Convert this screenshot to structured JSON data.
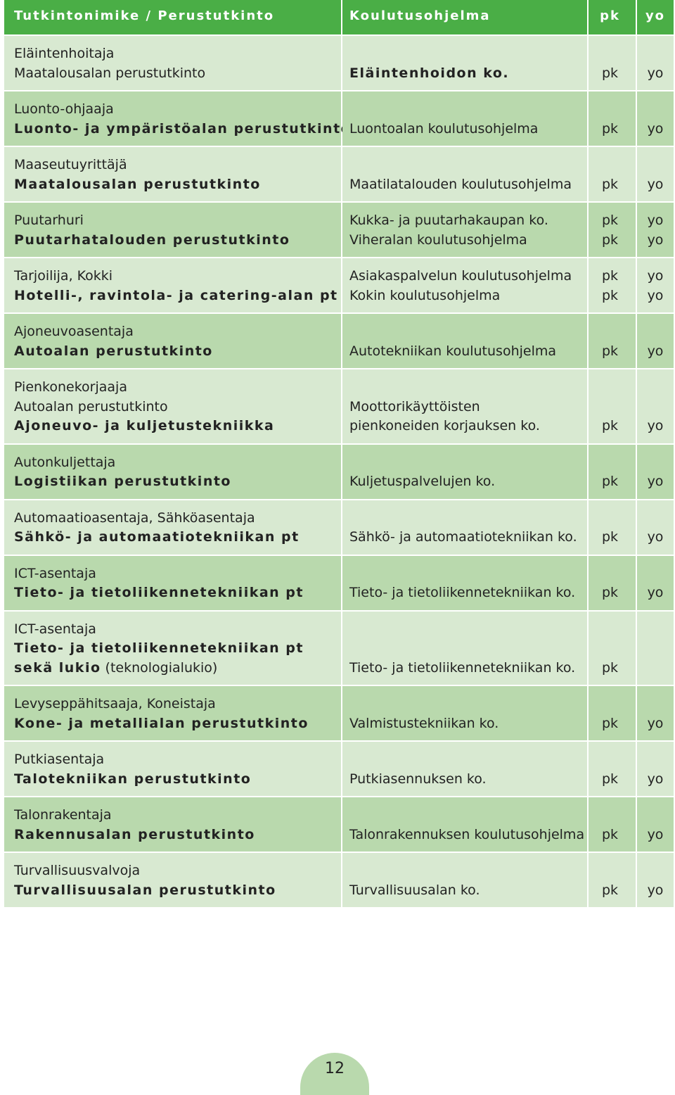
{
  "header": {
    "title_col": "Tutkintonimike /  Perustutkinto",
    "program_col": "Koulutusohjelma",
    "pk_col": "pk",
    "yo_col": "yo"
  },
  "rows": [
    {
      "titles": [
        "Eläintenhoitaja"
      ],
      "degree": [
        "Maatalousalan perustutkinto"
      ],
      "degree_bold": false,
      "programs": [
        "Eläintenhoidon ko."
      ],
      "program_bold": true,
      "pk": [
        "pk"
      ],
      "yo": [
        "yo"
      ]
    },
    {
      "titles": [
        "Luonto-ohjaaja"
      ],
      "degree": [
        "Luonto- ja ympäristöalan perustutkinto"
      ],
      "degree_bold": true,
      "programs": [
        "Luontoalan koulutusohjelma"
      ],
      "pk": [
        "pk"
      ],
      "yo": [
        "yo"
      ]
    },
    {
      "titles": [
        "Maaseutuyrittäjä"
      ],
      "degree": [
        "Maatalousalan perustutkinto"
      ],
      "degree_bold": true,
      "programs": [
        "Maatilatalouden koulutusohjelma"
      ],
      "pk": [
        "pk"
      ],
      "yo": [
        "yo"
      ]
    },
    {
      "titles": [
        "Puutarhuri"
      ],
      "degree": [
        "Puutarhatalouden perustutkinto"
      ],
      "degree_bold": true,
      "programs": [
        "Kukka- ja puutarhakaupan ko.",
        "Viheralan koulutusohjelma"
      ],
      "pk": [
        "pk",
        "pk"
      ],
      "yo": [
        "yo",
        "yo"
      ]
    },
    {
      "titles": [
        "Tarjoilija, Kokki"
      ],
      "degree": [
        "Hotelli-, ravintola- ja catering-alan pt"
      ],
      "degree_bold": true,
      "programs": [
        "Asiakaspalvelun koulutusohjelma",
        "Kokin koulutusohjelma"
      ],
      "pk": [
        "pk",
        "pk"
      ],
      "yo": [
        "yo",
        "yo"
      ]
    },
    {
      "titles": [
        "Ajoneuvoasentaja"
      ],
      "degree": [
        "Autoalan perustutkinto"
      ],
      "degree_bold": true,
      "programs": [
        "Autotekniikan koulutusohjelma"
      ],
      "pk": [
        "pk"
      ],
      "yo": [
        "yo"
      ]
    },
    {
      "titles": [
        "Pienkonekorjaaja",
        "Autoalan perustutkinto"
      ],
      "degree": [
        "Ajoneuvo- ja kuljetustekniikka"
      ],
      "degree_bold": true,
      "programs": [
        "Moottorikäyttöisten",
        "pienkoneiden korjauksen ko."
      ],
      "pk": [
        "pk"
      ],
      "yo": [
        "yo"
      ]
    },
    {
      "titles": [
        "Autonkuljettaja"
      ],
      "degree": [
        "Logistiikan perustutkinto"
      ],
      "degree_bold": true,
      "programs": [
        "Kuljetuspalvelujen ko."
      ],
      "pk": [
        "pk"
      ],
      "yo": [
        "yo"
      ]
    },
    {
      "titles": [
        "Automaatioasentaja, Sähköasentaja"
      ],
      "degree": [
        "Sähkö- ja automaatiotekniikan pt"
      ],
      "degree_bold": true,
      "programs": [
        "Sähkö- ja automaatiotekniikan ko."
      ],
      "pk": [
        "pk"
      ],
      "yo": [
        "yo"
      ]
    },
    {
      "titles": [
        "ICT-asentaja"
      ],
      "degree": [
        "Tieto- ja tietoliikennetekniikan pt"
      ],
      "degree_bold": true,
      "programs": [
        "Tieto- ja tietoliikennetekniikan ko."
      ],
      "pk": [
        "pk"
      ],
      "yo": [
        "yo"
      ]
    },
    {
      "titles": [
        "ICT-asentaja"
      ],
      "degree": [
        "Tieto- ja tietoliikennetekniikan pt"
      ],
      "degree_bold": true,
      "extra_bold": "sekä lukio",
      "extra_normal": " (teknologialukio)",
      "programs": [
        "Tieto- ja tietoliikennetekniikan ko."
      ],
      "pk": [
        "pk"
      ],
      "yo": []
    },
    {
      "titles": [
        "Levyseppähitsaaja, Koneistaja"
      ],
      "degree": [
        "Kone- ja metallialan perustutkinto"
      ],
      "degree_bold": true,
      "programs": [
        "Valmistustekniikan ko."
      ],
      "pk": [
        "pk"
      ],
      "yo": [
        "yo"
      ]
    },
    {
      "titles": [
        "Putkiasentaja"
      ],
      "degree": [
        "Talotekniikan perustutkinto"
      ],
      "degree_bold": true,
      "programs": [
        "Putkiasennuksen ko."
      ],
      "pk": [
        "pk"
      ],
      "yo": [
        "yo"
      ]
    },
    {
      "titles": [
        "Talonrakentaja"
      ],
      "degree": [
        "Rakennusalan perustutkinto"
      ],
      "degree_bold": true,
      "programs": [
        "Talonrakennuksen koulutusohjelma"
      ],
      "pk": [
        "pk"
      ],
      "yo": [
        "yo"
      ]
    },
    {
      "titles": [
        "Turvallisuusvalvoja"
      ],
      "degree": [
        "Turvallisuusalan perustutkinto"
      ],
      "degree_bold": true,
      "programs": [
        "Turvallisuusalan ko."
      ],
      "pk": [
        "pk"
      ],
      "yo": [
        "yo"
      ]
    }
  ],
  "page_number": "12"
}
